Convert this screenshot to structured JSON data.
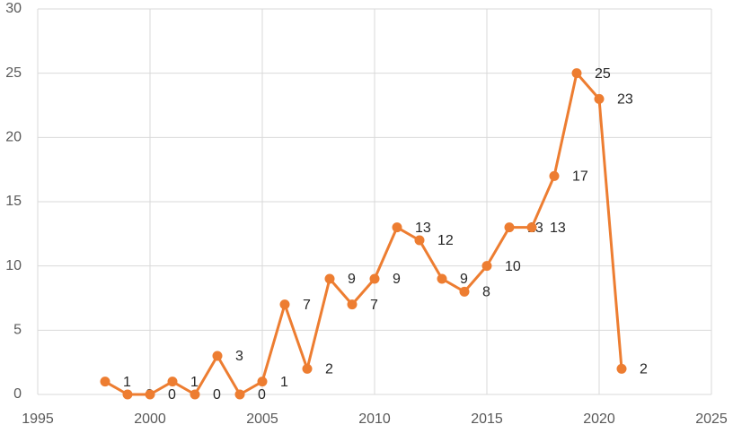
{
  "chart_data": {
    "type": "line",
    "x": [
      1998,
      1999,
      2000,
      2001,
      2002,
      2003,
      2004,
      2005,
      2006,
      2007,
      2008,
      2009,
      2010,
      2011,
      2012,
      2013,
      2014,
      2015,
      2016,
      2017,
      2018,
      2019,
      2020,
      2021
    ],
    "series": [
      {
        "color": "#ed7d31",
        "values": [
          1,
          0,
          0,
          1,
          0,
          3,
          0,
          1,
          7,
          2,
          9,
          7,
          9,
          13,
          12,
          9,
          8,
          10,
          13,
          13,
          17,
          25,
          23,
          2
        ]
      }
    ],
    "xlim": [
      1995,
      2025
    ],
    "xticks": [
      1995,
      2000,
      2005,
      2010,
      2015,
      2020,
      2025
    ],
    "ylim": [
      0,
      30
    ],
    "yticks": [
      0,
      5,
      10,
      15,
      20,
      25,
      30
    ],
    "grid": true,
    "data_labels": true
  }
}
